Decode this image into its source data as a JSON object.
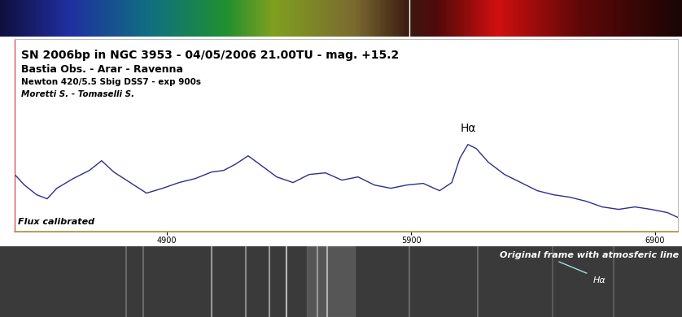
{
  "chart_data": {
    "type": "line",
    "title": "SN 2006bp in NGC 3953 - 04/05/2006 21.00TU - mag. +15.2",
    "subtitle": [
      "Bastia Obs. - Arar - Ravenna",
      "Newton 420/5.5 Sbig DSS7 - exp 900s",
      "Moretti S. - Tomaselli S."
    ],
    "annotations": [
      "Hα",
      "Flux calibrated"
    ],
    "x": [
      4277,
      4317,
      4367,
      4410,
      4450,
      4517,
      4583,
      4633,
      4683,
      4750,
      4817,
      4883,
      4950,
      5017,
      5083,
      5133,
      5183,
      5233,
      5283,
      5350,
      5417,
      5483,
      5550,
      5617,
      5683,
      5750,
      5817,
      5883,
      5950,
      6017,
      6067,
      6100,
      6133,
      6167,
      6217,
      6283,
      6350,
      6417,
      6483,
      6550,
      6617,
      6683,
      6750,
      6817,
      6883,
      6950,
      6993
    ],
    "values": [
      33.2,
      28,
      23.2,
      21.2,
      26.4,
      31.2,
      35.2,
      40,
      34.4,
      29.2,
      24,
      26.4,
      29.2,
      31.2,
      34.4,
      35.2,
      38.4,
      42.4,
      38,
      32,
      29.2,
      33.2,
      34,
      30.4,
      32,
      28,
      26.4,
      28,
      28.8,
      25.2,
      29.2,
      41.2,
      48,
      46,
      39.2,
      33.2,
      29.2,
      25.2,
      23.2,
      22,
      20,
      17.2,
      16,
      17.2,
      16,
      14.4,
      12
    ],
    "color": "#2e2e8c",
    "xlim": [
      4277,
      6993
    ],
    "xticks": [
      4900,
      5900,
      6900
    ],
    "ylim": [
      5,
      100
    ],
    "yticks": [],
    "tick_labels": "x",
    "grid": false
  },
  "frame": {
    "caption": "Original frame with atmosferic line",
    "label": "Hα"
  }
}
